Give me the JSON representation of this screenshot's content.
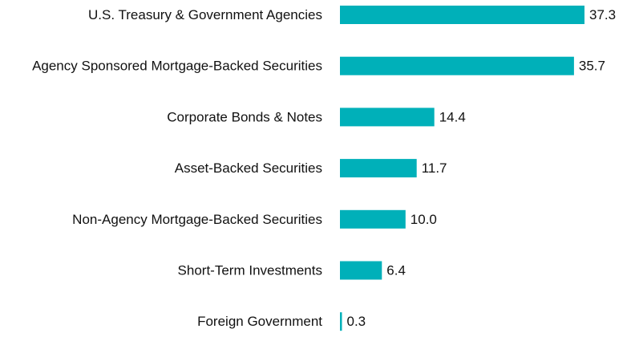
{
  "chart_data": {
    "type": "bar",
    "orientation": "horizontal",
    "categories": [
      "U.S. Treasury & Government Agencies",
      "Agency Sponsored Mortgage-Backed Securities",
      "Corporate Bonds & Notes",
      "Asset-Backed Securities",
      "Non-Agency Mortgage-Backed Securities",
      "Short-Term Investments",
      "Foreign Government"
    ],
    "values": [
      37.3,
      35.7,
      14.4,
      11.7,
      10.0,
      6.4,
      0.3
    ],
    "value_labels": [
      "37.3",
      "35.7",
      "14.4",
      "11.7",
      "10.0",
      "6.4",
      "0.3"
    ],
    "title": "",
    "xlabel": "",
    "ylabel": "",
    "xlim": [
      0,
      37.3
    ],
    "grid": false,
    "legend": "none",
    "bar_color": "#00B0B9"
  }
}
